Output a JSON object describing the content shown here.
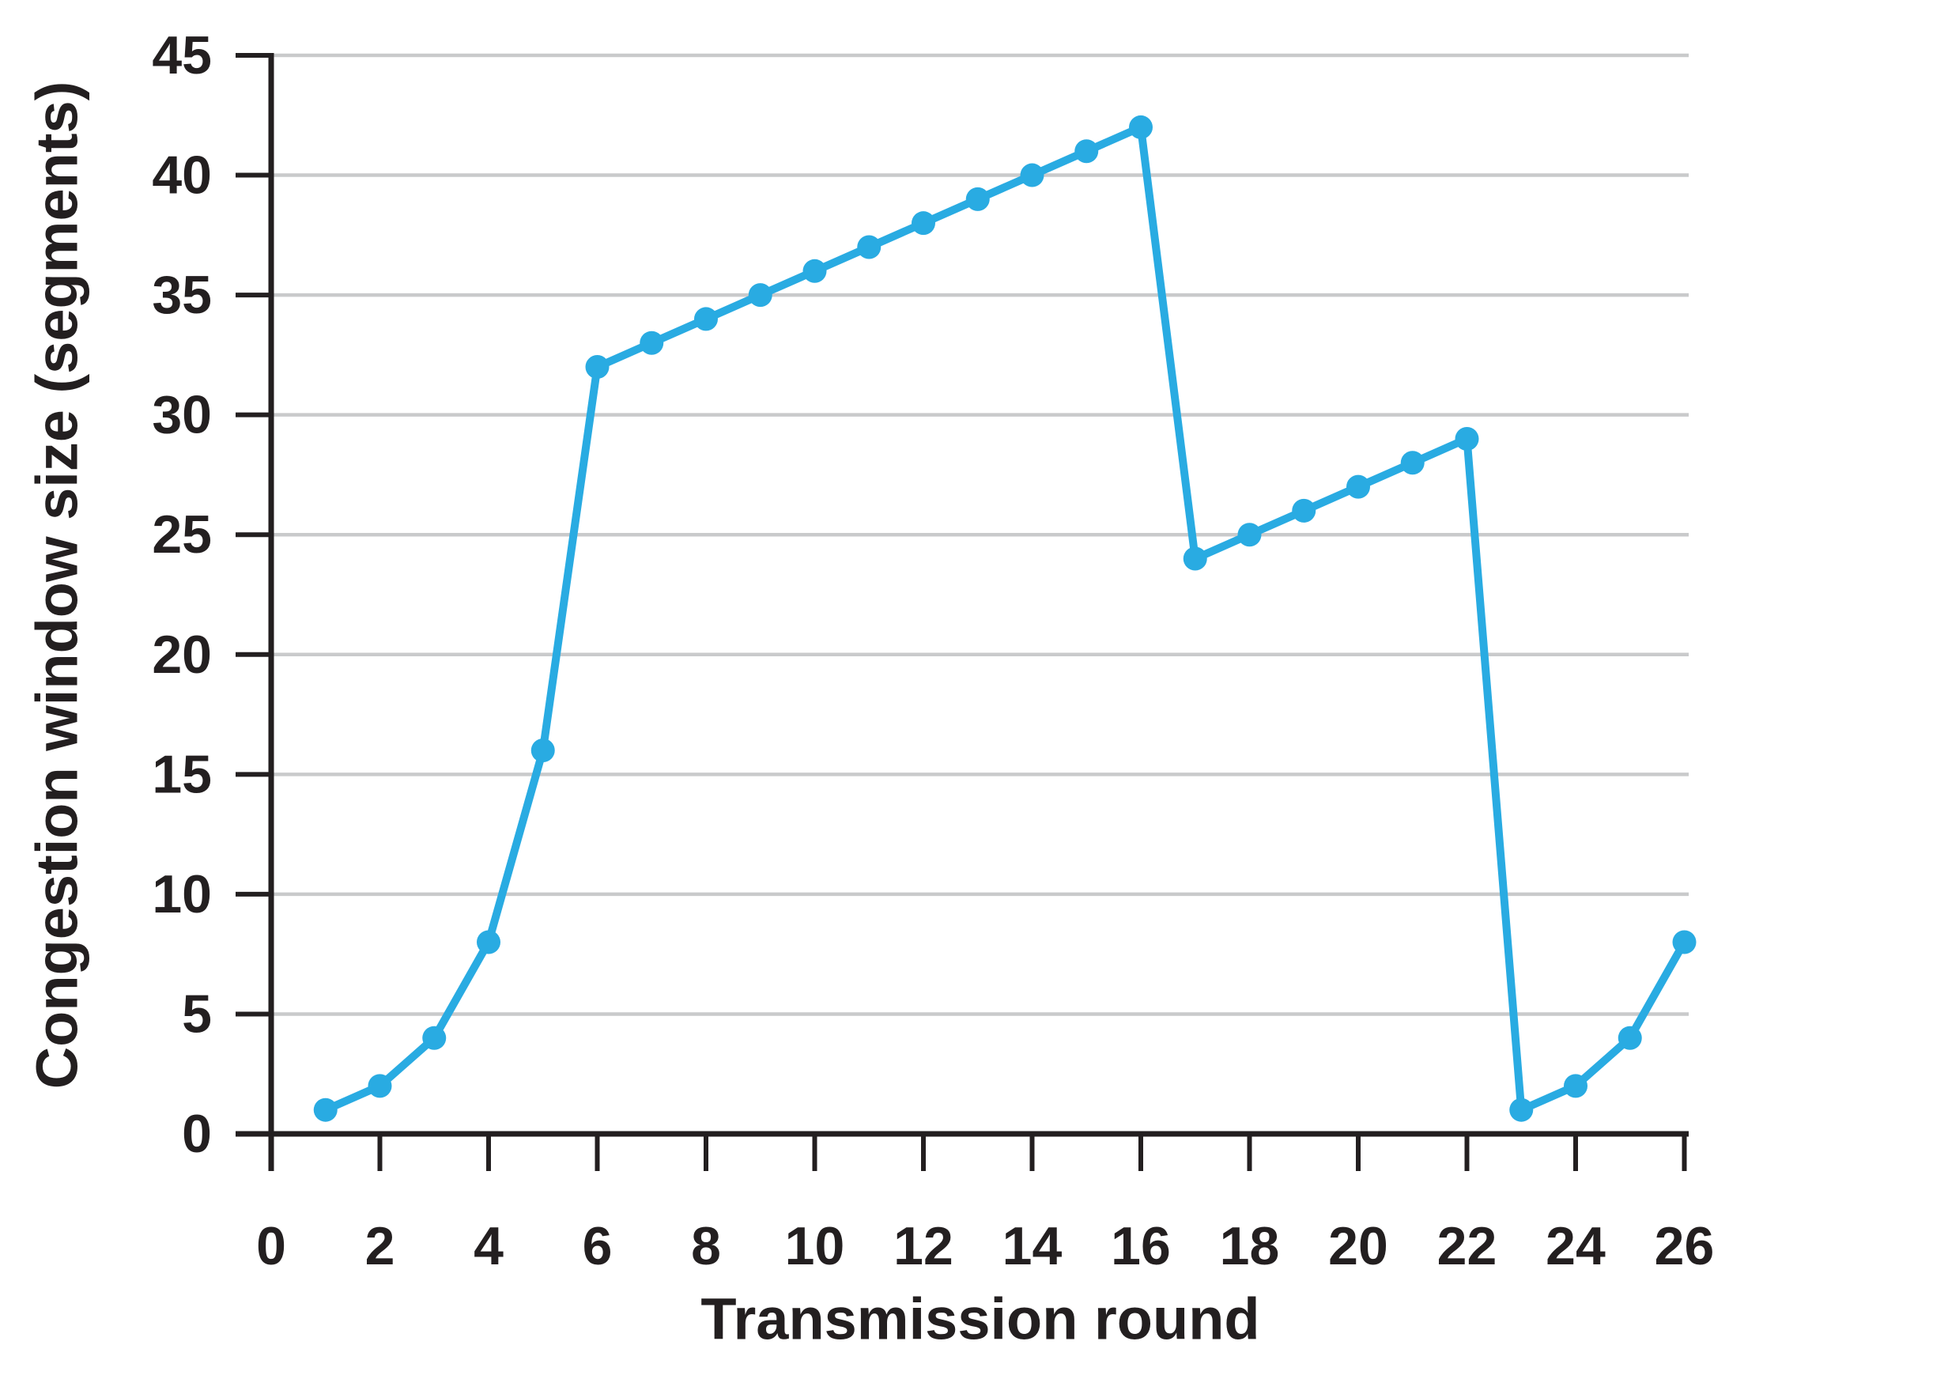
{
  "chart_data": {
    "type": "line",
    "title": "",
    "xlabel": "Transmission round",
    "ylabel": "Congestion window size (segments)",
    "series": [
      {
        "name": "Congestion window size",
        "x": [
          1,
          2,
          3,
          4,
          5,
          6,
          7,
          8,
          9,
          10,
          11,
          12,
          13,
          14,
          15,
          16,
          17,
          18,
          19,
          20,
          21,
          22,
          23,
          24,
          25,
          26
        ],
        "y": [
          1,
          2,
          4,
          8,
          16,
          32,
          33,
          34,
          35,
          36,
          37,
          38,
          39,
          40,
          41,
          42,
          24,
          25,
          26,
          27,
          28,
          29,
          1,
          2,
          4,
          8
        ]
      }
    ],
    "xlim": [
      0,
      26
    ],
    "ylim": [
      0,
      45
    ],
    "xticks": [
      0,
      2,
      4,
      6,
      8,
      10,
      12,
      14,
      16,
      18,
      20,
      22,
      24,
      26
    ],
    "yticks": [
      0,
      5,
      10,
      15,
      20,
      25,
      30,
      35,
      40,
      45
    ],
    "grid": "horizontal-only",
    "legend_position": "none",
    "marker": "filled-circle"
  },
  "colors": {
    "series_line": "#29abe2",
    "marker_fill": "#29abe2",
    "axis": "#231f20",
    "gridline": "#c9cacb",
    "text": "#231f20",
    "background": "#ffffff"
  }
}
